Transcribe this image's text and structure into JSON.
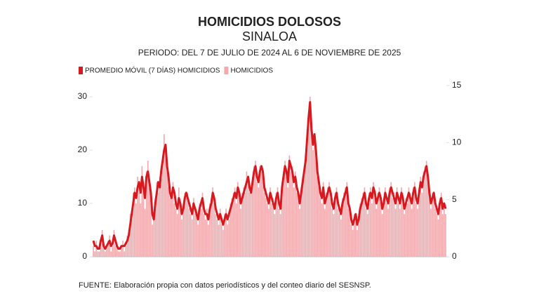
{
  "chart_data": {
    "type": "bar-line",
    "title": "HOMICIDIOS DOLOSOS",
    "subtitle": "SINALOA",
    "period": "PERIODO: DEL 7 DE JULIO DE 2024 AL 6 DE NOVIEMBRE DE 2025",
    "source": "FUENTE: Elaboración propia con datos periodísticos y del conteo diario del SESNSP.",
    "ylim": [
      0,
      30
    ],
    "yticks": [
      0,
      10,
      20,
      30
    ],
    "y2lim": [
      0,
      15
    ],
    "y2ticks": [
      0,
      5,
      10,
      15
    ],
    "series": [
      {
        "name": "PROMEDIO MÓVIL (7 DÍAS) HOMICIDIOS",
        "color": "#d7191f",
        "kind": "line",
        "values": [
          3,
          2,
          2,
          1.5,
          1.5,
          3,
          4,
          2,
          1.5,
          2,
          2.5,
          3,
          2,
          2.5,
          4,
          3,
          2,
          1.5,
          1.5,
          2,
          2,
          2,
          2.5,
          3,
          4,
          6,
          8,
          10,
          12,
          11,
          13,
          14,
          12,
          15,
          13,
          11,
          15,
          16,
          14,
          12,
          8,
          7,
          10,
          12,
          14,
          13,
          16,
          18,
          20,
          21,
          17,
          15,
          12,
          11,
          13,
          12,
          10,
          9,
          11,
          10,
          8,
          9,
          11,
          12,
          11,
          10,
          9,
          8,
          10,
          9,
          8,
          7,
          9,
          10,
          11,
          9,
          8,
          8,
          7,
          9,
          10,
          12,
          11,
          9,
          8,
          7,
          8,
          7,
          6,
          7,
          8,
          7,
          8,
          9,
          10,
          11,
          12,
          11,
          13,
          12,
          10,
          11,
          12,
          13,
          14,
          15,
          13,
          12,
          14,
          16,
          17,
          15,
          14,
          16,
          17,
          16,
          13,
          12,
          11,
          10,
          12,
          11,
          10,
          9,
          11,
          12,
          10,
          9,
          13,
          15,
          17,
          16,
          14,
          18,
          17,
          16,
          14,
          15,
          13,
          12,
          10,
          12,
          14,
          16,
          18,
          22,
          26,
          29,
          24,
          21,
          23,
          20,
          16,
          14,
          12,
          11,
          13,
          10,
          11,
          12,
          13,
          12,
          10,
          9,
          11,
          12,
          10,
          9,
          8,
          10,
          11,
          12,
          13,
          10,
          9,
          7,
          6,
          7,
          8,
          6,
          7,
          9,
          10,
          11,
          12,
          10,
          9,
          11,
          12,
          11,
          13,
          12,
          10,
          11,
          12,
          11,
          9,
          10,
          12,
          11,
          10,
          12,
          13,
          12,
          11,
          10,
          12,
          11,
          10,
          12,
          11,
          9,
          10,
          11,
          12,
          11,
          10,
          12,
          13,
          11,
          10,
          12,
          14,
          13,
          15,
          16,
          17,
          15,
          12,
          10,
          11,
          12,
          10,
          9,
          8,
          10,
          11,
          9,
          10,
          9
        ]
      },
      {
        "name": "HOMICIDIOS",
        "color": "#f4a9ad",
        "kind": "bar",
        "values": [
          2,
          1,
          3,
          1,
          1,
          3,
          5,
          2,
          1,
          2,
          3,
          4,
          1,
          2,
          5,
          2,
          2,
          1,
          1,
          2,
          3,
          1,
          2,
          4,
          5,
          8,
          7,
          12,
          13,
          10,
          15,
          12,
          10,
          17,
          14,
          9,
          16,
          18,
          13,
          11,
          6,
          7,
          11,
          14,
          12,
          15,
          17,
          19,
          23,
          20,
          16,
          13,
          11,
          12,
          14,
          10,
          9,
          8,
          13,
          9,
          7,
          10,
          12,
          11,
          12,
          9,
          8,
          7,
          11,
          8,
          9,
          6,
          10,
          9,
          12,
          8,
          7,
          9,
          6,
          10,
          11,
          13,
          10,
          8,
          7,
          6,
          9,
          6,
          5,
          8,
          9,
          6,
          7,
          10,
          11,
          12,
          13,
          10,
          14,
          11,
          9,
          12,
          13,
          12,
          16,
          14,
          12,
          13,
          15,
          17,
          18,
          14,
          13,
          17,
          16,
          15,
          12,
          11,
          10,
          9,
          13,
          10,
          11,
          8,
          12,
          13,
          9,
          8,
          14,
          16,
          18,
          15,
          13,
          19,
          16,
          17,
          13,
          16,
          12,
          11,
          9,
          13,
          15,
          17,
          19,
          24,
          27,
          30,
          25,
          20,
          22,
          19,
          15,
          13,
          11,
          10,
          14,
          9,
          12,
          13,
          14,
          11,
          9,
          8,
          12,
          13,
          9,
          8,
          7,
          11,
          12,
          13,
          14,
          9,
          8,
          6,
          5,
          8,
          7,
          5,
          6,
          10,
          11,
          12,
          13,
          9,
          8,
          12,
          13,
          10,
          14,
          11,
          9,
          12,
          13,
          10,
          8,
          11,
          13,
          10,
          9,
          13,
          14,
          11,
          12,
          9,
          13,
          10,
          9,
          13,
          12,
          8,
          11,
          10,
          13,
          12,
          9,
          13,
          14,
          10,
          9,
          13,
          15,
          12,
          16,
          17,
          18,
          14,
          11,
          9,
          12,
          11,
          9,
          8,
          7,
          11,
          12,
          8,
          9,
          8
        ]
      }
    ]
  }
}
